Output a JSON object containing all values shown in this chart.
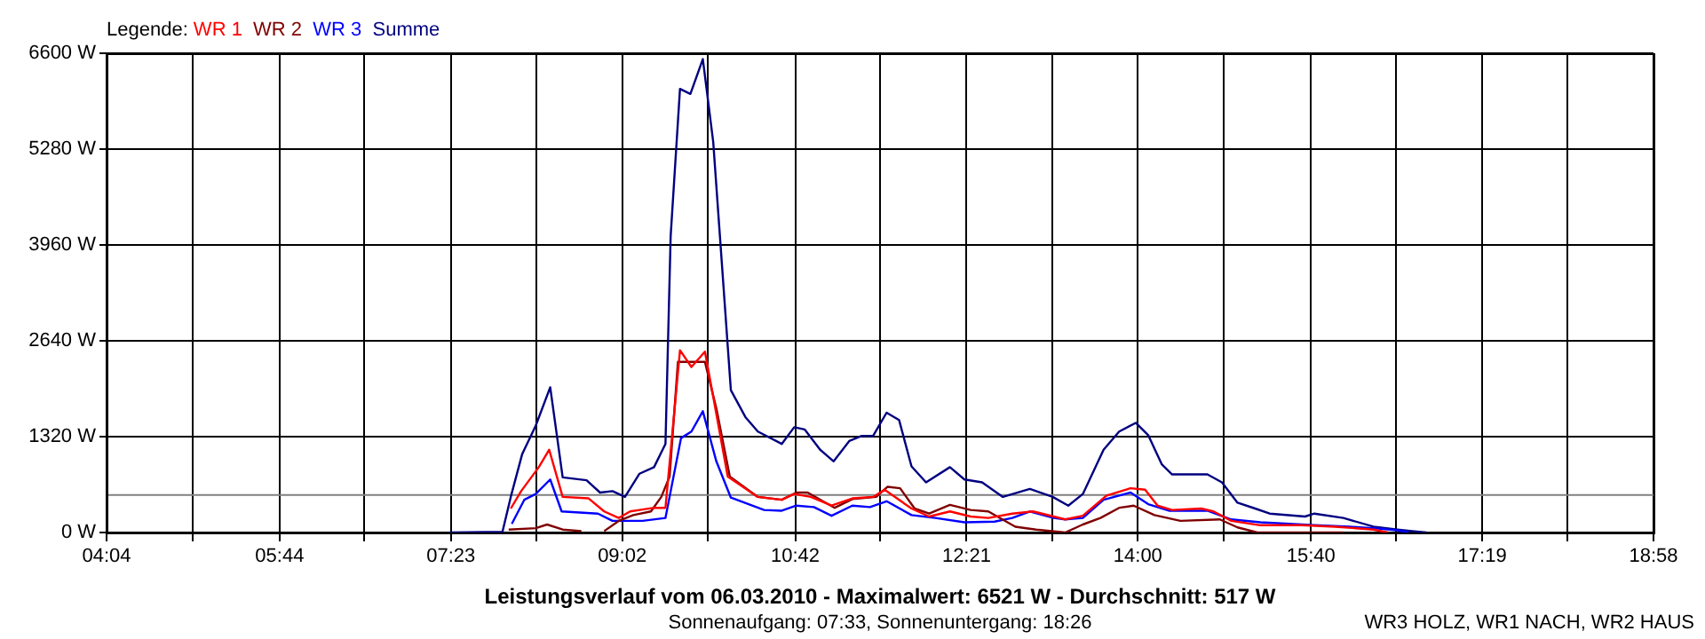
{
  "chart_data": {
    "type": "line",
    "title": "Leistungsverlauf vom 06.03.2010 - Maximalwert: 6521 W - Durchschnitt: 517 W",
    "subtitle": "Sonnenaufgang: 07:33, Sonnenuntergang: 18:26",
    "legend_title": "Legende:",
    "annotations": [
      "WR3 HOLZ, WR1 NACH, WR2 HAUS"
    ],
    "legend": "top left",
    "grid": true,
    "marker": "none",
    "line_style": "solid",
    "xlim": [
      4.0667,
      18.9667
    ],
    "xticks": [
      {
        "value": 4.0667,
        "label": "04:04"
      },
      {
        "value": 4.8944,
        "label": null
      },
      {
        "value": 5.7333,
        "label": "05:44"
      },
      {
        "value": 6.55,
        "label": null
      },
      {
        "value": 7.3833,
        "label": "07:23"
      },
      {
        "value": 8.2056,
        "label": null
      },
      {
        "value": 9.0333,
        "label": "09:02"
      },
      {
        "value": 9.8611,
        "label": null
      },
      {
        "value": 10.7,
        "label": "10:42"
      },
      {
        "value": 11.5167,
        "label": null
      },
      {
        "value": 12.35,
        "label": "12:21"
      },
      {
        "value": 13.1722,
        "label": null
      },
      {
        "value": 14.0,
        "label": "14:00"
      },
      {
        "value": 14.8278,
        "label": null
      },
      {
        "value": 15.6667,
        "label": "15:40"
      },
      {
        "value": 16.4833,
        "label": null
      },
      {
        "value": 17.3167,
        "label": "17:19"
      },
      {
        "value": 18.1389,
        "label": null
      },
      {
        "value": 18.9667,
        "label": "18:58"
      }
    ],
    "ylim": [
      0,
      6600
    ],
    "yticks": [
      {
        "value": 0,
        "label": "0 W"
      },
      {
        "value": 1320,
        "label": "1320 W"
      },
      {
        "value": 2640,
        "label": "2640 W"
      },
      {
        "value": 3960,
        "label": "3960 W"
      },
      {
        "value": 5280,
        "label": "5280 W"
      },
      {
        "value": 6600,
        "label": "6600 W"
      }
    ],
    "ref_lines": [
      {
        "axis": "y",
        "value": 517,
        "color": "#808080"
      }
    ],
    "series": [
      {
        "name": "WR 1",
        "color": "#ff0000",
        "x": [
          7.96,
          8.06,
          8.23,
          8.33,
          8.46,
          8.71,
          8.86,
          9.0,
          9.11,
          9.2,
          9.34,
          9.45,
          9.59,
          9.7,
          9.83,
          9.91,
          10.05,
          10.34,
          10.57,
          10.69,
          10.85,
          11.05,
          11.25,
          11.45,
          11.56,
          11.82,
          11.99,
          12.19,
          12.39,
          12.56,
          12.79,
          12.99,
          13.19,
          13.3,
          13.47,
          13.7,
          13.93,
          14.07,
          14.19,
          14.33,
          14.61,
          14.73,
          14.9,
          15.18,
          15.58,
          15.9,
          16.27,
          16.41
        ],
        "values": [
          330,
          570,
          900,
          1140,
          490,
          470,
          290,
          200,
          290,
          310,
          340,
          340,
          2510,
          2280,
          2490,
          1870,
          770,
          490,
          450,
          530,
          490,
          370,
          470,
          490,
          590,
          330,
          220,
          290,
          220,
          200,
          260,
          290,
          220,
          180,
          230,
          510,
          610,
          590,
          370,
          310,
          330,
          290,
          160,
          100,
          100,
          80,
          40,
          0
        ]
      },
      {
        "name": "WR 2",
        "color": "#800000",
        "x": [
          7.94,
          8.2,
          8.31,
          8.46,
          8.64,
          8.75,
          8.86,
          9.0,
          9.14,
          9.31,
          9.41,
          9.49,
          9.57,
          9.83,
          9.94,
          10.07,
          10.34,
          10.57,
          10.71,
          10.82,
          11.08,
          11.25,
          11.48,
          11.59,
          11.71,
          11.85,
          11.99,
          12.19,
          12.39,
          12.56,
          12.82,
          13.02,
          13.3,
          13.47,
          13.64,
          13.82,
          13.96,
          14.16,
          14.41,
          14.79,
          14.96,
          15.15,
          15.98
        ],
        "values": [
          40,
          60,
          110,
          40,
          20,
          null,
          20,
          160,
          240,
          290,
          490,
          770,
          2350,
          2350,
          1710,
          770,
          490,
          450,
          550,
          550,
          340,
          460,
          490,
          630,
          610,
          330,
          260,
          380,
          310,
          290,
          80,
          40,
          0,
          110,
          200,
          340,
          370,
          240,
          160,
          180,
          70,
          0,
          0
        ]
      },
      {
        "name": "WR 3",
        "color": "#0000ff",
        "x": [
          7.97,
          8.09,
          8.2,
          8.34,
          8.45,
          8.8,
          8.94,
          9.23,
          9.45,
          9.6,
          9.7,
          9.81,
          9.94,
          10.08,
          10.4,
          10.57,
          10.71,
          10.88,
          11.05,
          11.25,
          11.42,
          11.58,
          11.82,
          12.05,
          12.33,
          12.62,
          12.79,
          12.96,
          13.19,
          13.3,
          13.47,
          13.67,
          13.93,
          14.1,
          14.3,
          14.67,
          14.9,
          15.18,
          15.7,
          16.04,
          16.27,
          16.5,
          16.61
        ],
        "values": [
          120,
          450,
          530,
          730,
          290,
          260,
          160,
          160,
          200,
          1300,
          1390,
          1670,
          980,
          480,
          310,
          300,
          370,
          350,
          230,
          370,
          350,
          430,
          240,
          200,
          140,
          150,
          200,
          290,
          200,
          180,
          200,
          450,
          550,
          390,
          300,
          300,
          180,
          140,
          100,
          80,
          60,
          30,
          0
        ]
      },
      {
        "name": "Summe",
        "color": "#000080",
        "x": [
          7.37,
          7.88,
          7.96,
          8.07,
          8.2,
          8.34,
          8.46,
          8.69,
          8.82,
          8.94,
          9.06,
          9.2,
          9.34,
          9.45,
          9.5,
          9.59,
          9.69,
          9.81,
          9.91,
          10.08,
          10.22,
          10.34,
          10.57,
          10.69,
          10.79,
          10.94,
          11.07,
          11.22,
          11.34,
          11.45,
          11.58,
          11.7,
          11.82,
          11.96,
          12.19,
          12.33,
          12.5,
          12.7,
          12.96,
          13.18,
          13.33,
          13.47,
          13.67,
          13.82,
          13.98,
          14.1,
          14.23,
          14.33,
          14.67,
          14.81,
          14.96,
          15.13,
          15.27,
          15.61,
          15.7,
          15.98,
          16.27,
          16.5,
          16.64,
          16.78
        ],
        "values": [
          0,
          10,
          490,
          1080,
          1470,
          2000,
          760,
          720,
          550,
          570,
          490,
          810,
          900,
          1220,
          4080,
          6110,
          6040,
          6520,
          5380,
          1960,
          1590,
          1390,
          1220,
          1450,
          1420,
          1140,
          980,
          1260,
          1330,
          1330,
          1650,
          1550,
          910,
          690,
          900,
          730,
          690,
          490,
          600,
          490,
          370,
          530,
          1140,
          1390,
          1510,
          1340,
          940,
          800,
          800,
          690,
          410,
          330,
          260,
          220,
          260,
          200,
          80,
          40,
          20,
          0
        ]
      }
    ]
  }
}
